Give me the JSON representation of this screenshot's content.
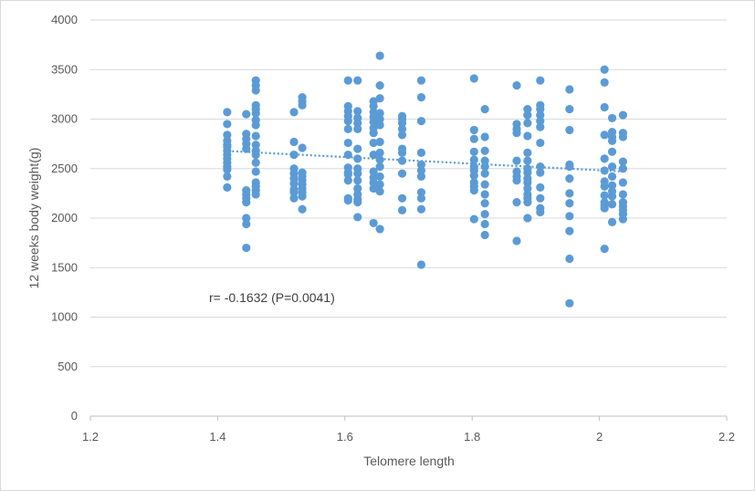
{
  "chart_data": {
    "type": "scatter",
    "title": "",
    "xlabel": "Telomere length",
    "ylabel": "12 weeks body weight(g)",
    "xlim": [
      1.2,
      2.2
    ],
    "ylim": [
      0,
      4000
    ],
    "x_ticks": [
      "1.2",
      "1.4",
      "1.6",
      "1.8",
      "2",
      "2.2"
    ],
    "y_ticks": [
      "0",
      "500",
      "1000",
      "1500",
      "2000",
      "2500",
      "3000",
      "3500",
      "4000"
    ],
    "grid": "horizontal",
    "legend": "none",
    "point_color": "#5b9bd5",
    "trendline": {
      "style": "dotted",
      "color": "#5b9bd5",
      "x": [
        1.41,
        2.04
      ],
      "y": [
        2680,
        2470
      ]
    },
    "annotation": "r= -0.1632 (P=0.0041)",
    "series": [
      {
        "x": [
          1.415,
          1.415,
          1.415,
          1.415,
          1.415,
          1.415,
          1.415,
          1.415,
          1.415,
          1.415,
          1.415,
          1.415,
          1.415,
          1.415,
          1.445,
          1.445,
          1.445,
          1.445,
          1.445,
          1.445,
          1.445,
          1.445,
          1.445,
          1.445,
          1.445,
          1.445,
          1.46,
          1.46,
          1.46,
          1.46,
          1.46,
          1.46,
          1.46,
          1.46,
          1.46,
          1.46,
          1.46,
          1.46,
          1.46,
          1.46,
          1.46,
          1.46,
          1.46,
          1.46,
          1.52,
          1.52,
          1.52,
          1.52,
          1.52,
          1.52,
          1.52,
          1.52,
          1.52,
          1.52,
          1.533,
          1.533,
          1.533,
          1.533,
          1.533,
          1.533,
          1.533,
          1.533,
          1.533,
          1.533,
          1.533,
          1.533,
          1.605,
          1.605,
          1.605,
          1.605,
          1.605,
          1.605,
          1.605,
          1.605,
          1.605,
          1.605,
          1.605,
          1.605,
          1.605,
          1.605,
          1.62,
          1.62,
          1.62,
          1.62,
          1.62,
          1.62,
          1.62,
          1.62,
          1.62,
          1.62,
          1.62,
          1.62,
          1.62,
          1.62,
          1.62,
          1.645,
          1.645,
          1.645,
          1.645,
          1.645,
          1.645,
          1.645,
          1.645,
          1.645,
          1.645,
          1.645,
          1.645,
          1.645,
          1.645,
          1.655,
          1.655,
          1.655,
          1.655,
          1.655,
          1.655,
          1.655,
          1.655,
          1.655,
          1.655,
          1.655,
          1.655,
          1.655,
          1.655,
          1.69,
          1.69,
          1.69,
          1.69,
          1.69,
          1.69,
          1.69,
          1.69,
          1.69,
          1.69,
          1.69,
          1.72,
          1.72,
          1.72,
          1.72,
          1.72,
          1.72,
          1.72,
          1.72,
          1.72,
          1.72,
          1.72,
          1.803,
          1.803,
          1.803,
          1.803,
          1.803,
          1.803,
          1.803,
          1.803,
          1.803,
          1.803,
          1.803,
          1.803,
          1.82,
          1.82,
          1.82,
          1.82,
          1.82,
          1.82,
          1.82,
          1.82,
          1.82,
          1.82,
          1.82,
          1.82,
          1.87,
          1.87,
          1.87,
          1.87,
          1.87,
          1.87,
          1.87,
          1.87,
          1.87,
          1.87,
          1.887,
          1.887,
          1.887,
          1.887,
          1.887,
          1.887,
          1.887,
          1.887,
          1.887,
          1.887,
          1.887,
          1.887,
          1.887,
          1.887,
          1.887,
          1.907,
          1.907,
          1.907,
          1.907,
          1.907,
          1.907,
          1.907,
          1.907,
          1.907,
          1.907,
          1.907,
          1.907,
          1.907,
          1.953,
          1.953,
          1.953,
          1.953,
          1.953,
          1.953,
          1.953,
          1.953,
          1.953,
          1.953,
          1.953,
          1.953,
          2.008,
          2.008,
          2.008,
          2.008,
          2.008,
          2.008,
          2.008,
          2.008,
          2.008,
          2.008,
          2.008,
          2.008,
          2.008,
          2.02,
          2.02,
          2.02,
          2.02,
          2.02,
          2.02,
          2.02,
          2.02,
          2.02,
          2.02,
          2.02,
          2.02,
          2.037,
          2.037,
          2.037,
          2.037,
          2.037,
          2.037,
          2.037,
          2.037,
          2.037,
          2.037,
          2.037,
          2.037
        ],
        "y": [
          3070,
          2950,
          2840,
          2780,
          2720,
          2680,
          2640,
          2600,
          2560,
          2520,
          2490,
          2420,
          2310,
          2740,
          3050,
          2850,
          2800,
          2750,
          2700,
          2280,
          2240,
          2200,
          2160,
          2000,
          1940,
          1700,
          3390,
          3340,
          3290,
          3140,
          3100,
          3060,
          2990,
          2940,
          2830,
          2740,
          2680,
          2640,
          2560,
          2470,
          2360,
          2320,
          2280,
          2240,
          3070,
          2770,
          2640,
          2500,
          2450,
          2400,
          2350,
          2290,
          2260,
          2200,
          3220,
          3180,
          3140,
          2710,
          2460,
          2420,
          2380,
          2340,
          2300,
          2260,
          2220,
          2090,
          3390,
          3130,
          3080,
          3030,
          2980,
          2900,
          2760,
          2640,
          2510,
          2460,
          2440,
          2380,
          2200,
          2180,
          3390,
          3080,
          3010,
          2960,
          2900,
          2700,
          2600,
          2500,
          2450,
          2380,
          2300,
          2240,
          2190,
          2160,
          2010,
          3180,
          3130,
          3070,
          3020,
          2970,
          2910,
          2860,
          2760,
          2640,
          2470,
          2410,
          2360,
          2300,
          1950,
          3640,
          3340,
          3210,
          3060,
          3000,
          2940,
          2770,
          2660,
          2590,
          2520,
          2420,
          2340,
          2270,
          1890,
          3030,
          3000,
          2960,
          2900,
          2840,
          2700,
          2660,
          2580,
          2450,
          2200,
          2080,
          3390,
          3220,
          2980,
          2660,
          2540,
          2480,
          2420,
          2260,
          2200,
          2090,
          1530,
          3410,
          2890,
          2800,
          2670,
          2590,
          2520,
          2480,
          2430,
          2360,
          2320,
          2280,
          1990,
          3100,
          2820,
          2680,
          2580,
          2520,
          2450,
          2340,
          2240,
          2150,
          2040,
          1940,
          1830,
          3340,
          2950,
          2900,
          2860,
          2580,
          2470,
          2420,
          2380,
          2160,
          1770,
          3100,
          3040,
          2960,
          2830,
          2660,
          2580,
          2500,
          2460,
          2400,
          2360,
          2300,
          2240,
          2200,
          2160,
          2000,
          3390,
          3140,
          3100,
          3040,
          2980,
          2920,
          2760,
          2520,
          2460,
          2310,
          2200,
          2100,
          2060,
          3300,
          3100,
          2890,
          2540,
          2520,
          2400,
          2250,
          2150,
          2020,
          1870,
          1590,
          1140,
          3500,
          3370,
          3120,
          2840,
          2600,
          2480,
          2370,
          2320,
          2230,
          2160,
          2130,
          2100,
          1690,
          3010,
          2870,
          2820,
          2780,
          2670,
          2520,
          2420,
          2330,
          2270,
          2220,
          2140,
          1960,
          3040,
          2860,
          2820,
          2570,
          2500,
          2360,
          2240,
          2160,
          2120,
          2080,
          2040,
          1990
        ]
      }
    ]
  }
}
